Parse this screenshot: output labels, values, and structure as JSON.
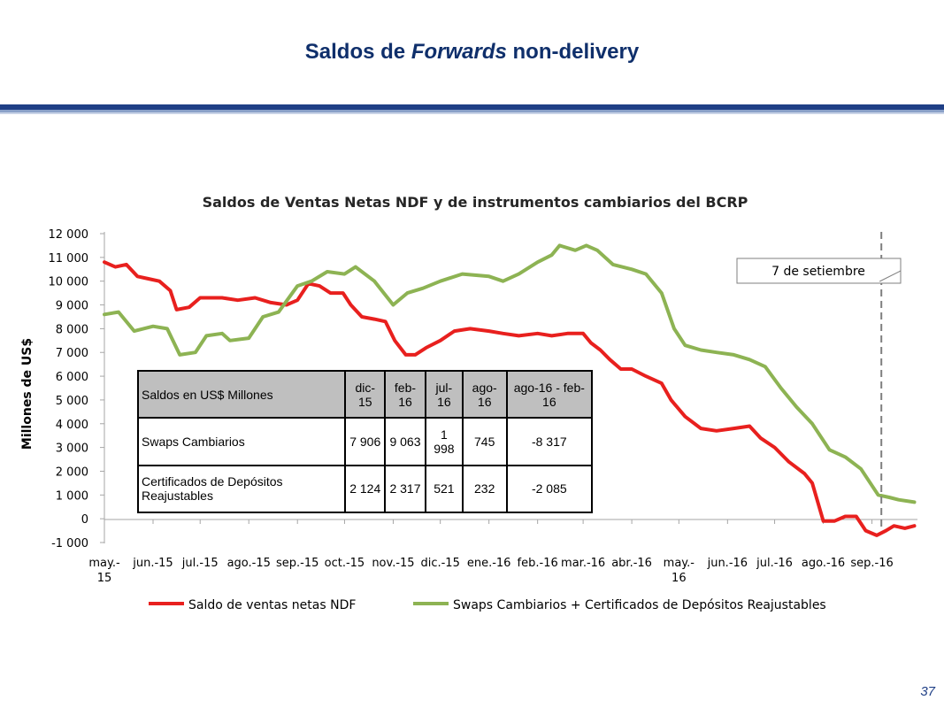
{
  "slide": {
    "title_prefix": "Saldos de ",
    "title_italic": "Forwards",
    "title_suffix": " non-delivery",
    "page_number": "37"
  },
  "chart_data": {
    "type": "line",
    "title": "Saldos de Ventas Netas NDF y de instrumentos cambiarios del BCRP",
    "ylabel": "Millones de US$",
    "xlabel": "",
    "ylim": [
      -1000,
      12000
    ],
    "yticks": [
      -1000,
      0,
      1000,
      2000,
      3000,
      4000,
      5000,
      6000,
      7000,
      8000,
      9000,
      10000,
      11000,
      12000
    ],
    "ytick_labels": [
      "-1 000",
      "0",
      "1 000",
      "2 000",
      "3 000",
      "4 000",
      "5 000",
      "6 000",
      "7 000",
      "8 000",
      "9 000",
      "10 000",
      "11 000",
      "12 000"
    ],
    "xlim": [
      "2015-05-01",
      "2016-09-30"
    ],
    "xticks": [
      "2015-05-01",
      "2015-06-01",
      "2015-07-01",
      "2015-08-01",
      "2015-09-01",
      "2015-10-01",
      "2015-11-01",
      "2015-12-01",
      "2016-01-01",
      "2016-02-01",
      "2016-03-01",
      "2016-04-01",
      "2016-05-01",
      "2016-06-01",
      "2016-07-01",
      "2016-08-01",
      "2016-09-01"
    ],
    "xtick_labels": [
      "may.-\n15",
      "jun.-15",
      "jul.-15",
      "ago.-15",
      "sep.-15",
      "oct.-15",
      "nov.-15",
      "dic.-15",
      "ene.-16",
      "feb.-16",
      "mar.-16",
      "abr.-16",
      "may.-\n16",
      "jun.-16",
      "jul.-16",
      "ago.-16",
      "sep.-16"
    ],
    "grid": false,
    "legend_position": "bottom",
    "series": [
      {
        "name": "Saldo de ventas netas NDF",
        "color": "#e8201e",
        "points": [
          [
            "2015-05-01",
            10800
          ],
          [
            "2015-05-08",
            10600
          ],
          [
            "2015-05-15",
            10700
          ],
          [
            "2015-05-22",
            10200
          ],
          [
            "2015-05-29",
            10100
          ],
          [
            "2015-06-05",
            10000
          ],
          [
            "2015-06-12",
            9600
          ],
          [
            "2015-06-16",
            8800
          ],
          [
            "2015-06-24",
            8900
          ],
          [
            "2015-07-01",
            9300
          ],
          [
            "2015-07-15",
            9300
          ],
          [
            "2015-07-25",
            9200
          ],
          [
            "2015-08-05",
            9300
          ],
          [
            "2015-08-15",
            9100
          ],
          [
            "2015-08-25",
            9000
          ],
          [
            "2015-09-01",
            9200
          ],
          [
            "2015-09-08",
            9900
          ],
          [
            "2015-09-15",
            9800
          ],
          [
            "2015-09-22",
            9500
          ],
          [
            "2015-09-30",
            9500
          ],
          [
            "2015-10-05",
            9000
          ],
          [
            "2015-10-12",
            8500
          ],
          [
            "2015-10-20",
            8400
          ],
          [
            "2015-10-27",
            8300
          ],
          [
            "2015-11-02",
            7500
          ],
          [
            "2015-11-09",
            6900
          ],
          [
            "2015-11-15",
            6900
          ],
          [
            "2015-11-22",
            7200
          ],
          [
            "2015-12-01",
            7500
          ],
          [
            "2015-12-10",
            7900
          ],
          [
            "2015-12-20",
            8000
          ],
          [
            "2016-01-01",
            7900
          ],
          [
            "2016-01-10",
            7800
          ],
          [
            "2016-01-20",
            7700
          ],
          [
            "2016-02-01",
            7800
          ],
          [
            "2016-02-10",
            7700
          ],
          [
            "2016-02-20",
            7800
          ],
          [
            "2016-03-01",
            7800
          ],
          [
            "2016-03-06",
            7400
          ],
          [
            "2016-03-12",
            7100
          ],
          [
            "2016-03-18",
            6700
          ],
          [
            "2016-03-25",
            6300
          ],
          [
            "2016-04-01",
            6300
          ],
          [
            "2016-04-10",
            6000
          ],
          [
            "2016-04-20",
            5700
          ],
          [
            "2016-04-26",
            5000
          ],
          [
            "2016-05-05",
            4300
          ],
          [
            "2016-05-15",
            3800
          ],
          [
            "2016-05-25",
            3700
          ],
          [
            "2016-06-05",
            3800
          ],
          [
            "2016-06-15",
            3900
          ],
          [
            "2016-06-22",
            3400
          ],
          [
            "2016-07-01",
            3000
          ],
          [
            "2016-07-10",
            2400
          ],
          [
            "2016-07-20",
            1900
          ],
          [
            "2016-07-25",
            1500
          ],
          [
            "2016-08-01",
            -100
          ],
          [
            "2016-08-08",
            -100
          ],
          [
            "2016-08-15",
            100
          ],
          [
            "2016-08-22",
            100
          ],
          [
            "2016-08-28",
            -500
          ],
          [
            "2016-09-04",
            -700
          ],
          [
            "2016-09-10",
            -500
          ],
          [
            "2016-09-15",
            -300
          ],
          [
            "2016-09-22",
            -400
          ],
          [
            "2016-09-28",
            -300
          ]
        ]
      },
      {
        "name": "Swaps Cambiarios + Certificados de Depósitos Reajustables",
        "color": "#8db353",
        "points": [
          [
            "2015-05-01",
            8600
          ],
          [
            "2015-05-10",
            8700
          ],
          [
            "2015-05-20",
            7900
          ],
          [
            "2015-06-01",
            8100
          ],
          [
            "2015-06-10",
            8000
          ],
          [
            "2015-06-18",
            6900
          ],
          [
            "2015-06-28",
            7000
          ],
          [
            "2015-07-05",
            7700
          ],
          [
            "2015-07-15",
            7800
          ],
          [
            "2015-07-20",
            7500
          ],
          [
            "2015-08-01",
            7600
          ],
          [
            "2015-08-10",
            8500
          ],
          [
            "2015-08-20",
            8700
          ],
          [
            "2015-09-01",
            9800
          ],
          [
            "2015-09-10",
            10000
          ],
          [
            "2015-09-20",
            10400
          ],
          [
            "2015-10-01",
            10300
          ],
          [
            "2015-10-08",
            10600
          ],
          [
            "2015-10-20",
            10000
          ],
          [
            "2015-11-01",
            9000
          ],
          [
            "2015-11-10",
            9500
          ],
          [
            "2015-11-20",
            9700
          ],
          [
            "2015-12-01",
            10000
          ],
          [
            "2015-12-15",
            10300
          ],
          [
            "2016-01-01",
            10200
          ],
          [
            "2016-01-10",
            10000
          ],
          [
            "2016-01-20",
            10300
          ],
          [
            "2016-02-01",
            10800
          ],
          [
            "2016-02-10",
            11100
          ],
          [
            "2016-02-15",
            11500
          ],
          [
            "2016-02-25",
            11300
          ],
          [
            "2016-03-03",
            11500
          ],
          [
            "2016-03-10",
            11300
          ],
          [
            "2016-03-20",
            10700
          ],
          [
            "2016-04-01",
            10500
          ],
          [
            "2016-04-10",
            10300
          ],
          [
            "2016-04-20",
            9500
          ],
          [
            "2016-04-28",
            8000
          ],
          [
            "2016-05-05",
            7300
          ],
          [
            "2016-05-15",
            7100
          ],
          [
            "2016-05-25",
            7000
          ],
          [
            "2016-06-05",
            6900
          ],
          [
            "2016-06-15",
            6700
          ],
          [
            "2016-06-25",
            6400
          ],
          [
            "2016-07-05",
            5500
          ],
          [
            "2016-07-15",
            4700
          ],
          [
            "2016-07-25",
            4000
          ],
          [
            "2016-08-05",
            2900
          ],
          [
            "2016-08-15",
            2600
          ],
          [
            "2016-08-25",
            2100
          ],
          [
            "2016-09-05",
            1000
          ],
          [
            "2016-09-12",
            900
          ],
          [
            "2016-09-18",
            800
          ],
          [
            "2016-09-28",
            700
          ]
        ]
      }
    ],
    "annotations": [
      {
        "text": "7 de setiembre",
        "x": "2016-09-07",
        "style": "dashed vertical line with callout box"
      }
    ],
    "inset_table": {
      "headers": [
        "Saldos en US$ Millones",
        "dic-15",
        "feb-16",
        "jul-16",
        "ago-16",
        "ago-16 - feb-16"
      ],
      "rows": [
        [
          "Swaps Cambiarios",
          "7 906",
          "9 063",
          "1 998",
          "745",
          "-8 317"
        ],
        [
          "Certificados de Depósitos Reajustables",
          "2 124",
          "2 317",
          "521",
          "232",
          "-2 085"
        ]
      ]
    }
  }
}
